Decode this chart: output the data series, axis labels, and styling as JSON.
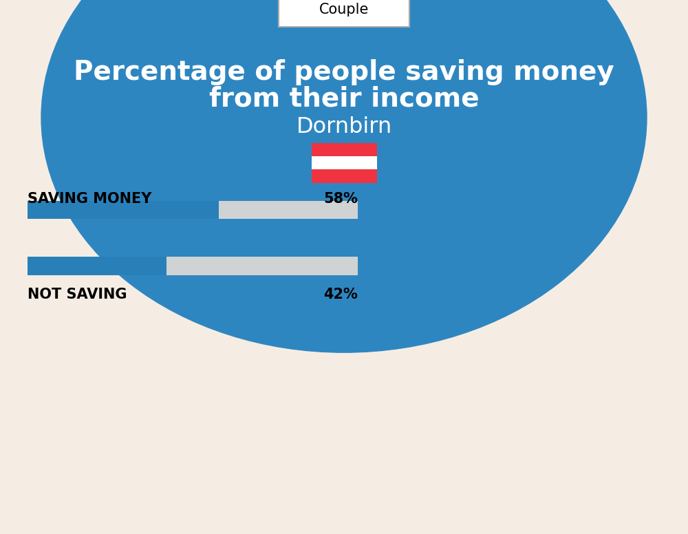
{
  "title_line1": "Percentage of people saving money",
  "title_line2": "from their income",
  "city": "Dornbirn",
  "tab_label": "Couple",
  "saving_label": "SAVING MONEY",
  "saving_value": 58,
  "saving_pct_text": "58%",
  "not_saving_label": "NOT SAVING",
  "not_saving_value": 42,
  "not_saving_pct_text": "42%",
  "bar_blue": "#2980B9",
  "bar_bg": "#D0D3D4",
  "bg_top": "#2E86C1",
  "bg_bottom": "#F5EDE3",
  "tab_bg": "#FFFFFF",
  "tab_border": "#CCCCCC",
  "flag_red": "#EF3340",
  "flag_white": "#FFFFFF"
}
